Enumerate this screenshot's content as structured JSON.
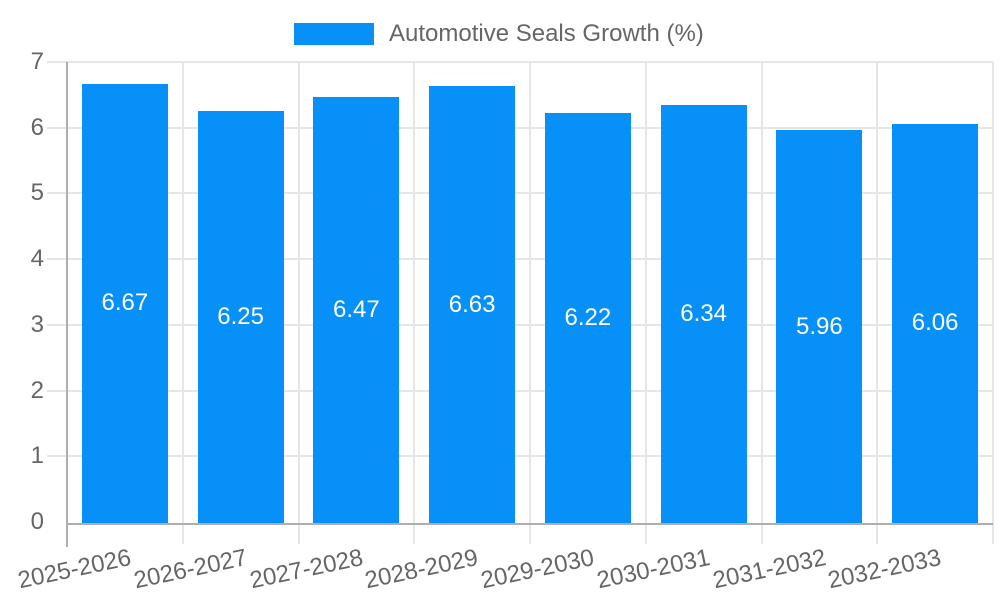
{
  "colors": {
    "bar": "#0790f7",
    "grid": "#e6e6e6",
    "axis": "#aeaeae",
    "tick_text": "#666666",
    "value_text": "#ffffff",
    "background": "#ffffff"
  },
  "chart_data": {
    "type": "bar",
    "legend_entries": [
      "Automotive Seals Growth (%)"
    ],
    "legend_position": "top",
    "categories": [
      "2025-2026",
      "2026-2027",
      "2027-2028",
      "2028-2029",
      "2029-2030",
      "2030-2031",
      "2031-2032",
      "2032-2033"
    ],
    "series": [
      {
        "name": "Automotive Seals Growth (%)",
        "values": [
          6.67,
          6.25,
          6.47,
          6.63,
          6.22,
          6.34,
          5.96,
          6.06
        ]
      }
    ],
    "value_labels": [
      "6.67",
      "6.25",
      "6.47",
      "6.63",
      "6.22",
      "6.34",
      "5.96",
      "6.06"
    ],
    "xlabel": "",
    "ylabel": "",
    "ylim": [
      0,
      7
    ],
    "y_ticks": [
      "0",
      "1",
      "2",
      "3",
      "4",
      "5",
      "6",
      "7"
    ],
    "grid": true,
    "x_label_rotation_deg": -12
  }
}
